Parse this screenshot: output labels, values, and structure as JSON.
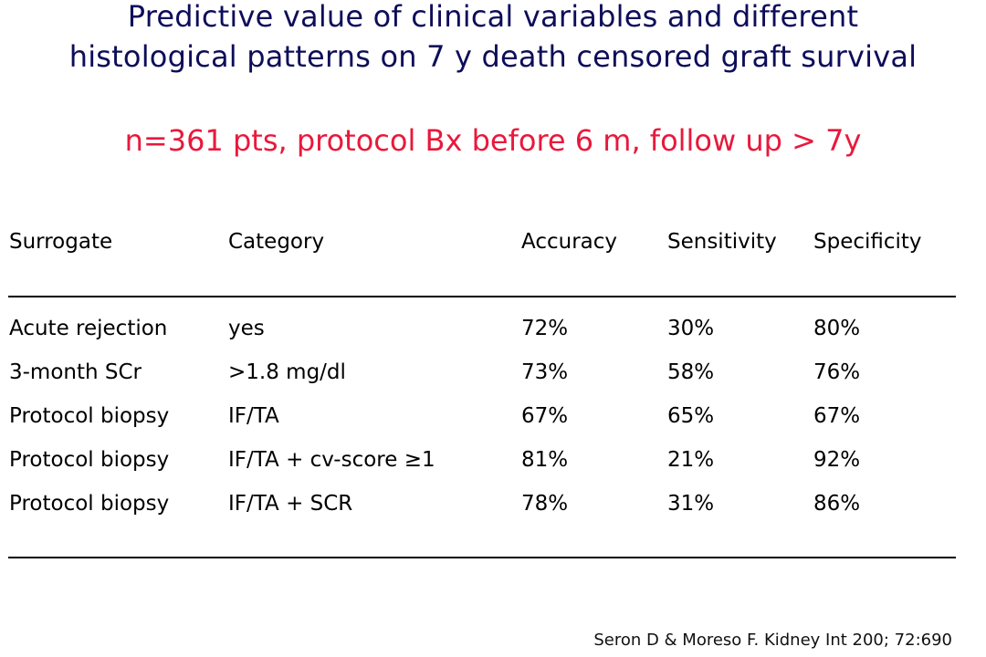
{
  "title": {
    "line1": "Predictive value of clinical variables and different",
    "line2": "histological patterns on 7 y death censored graft survival"
  },
  "subtitle": "n=361 pts, protocol Bx before 6 m, follow up > 7y",
  "table": {
    "headers": [
      "Surrogate",
      "Category",
      "Accuracy",
      "Sensitivity",
      "Specificity"
    ],
    "rows": [
      [
        "Acute rejection",
        "yes",
        "72%",
        "30%",
        "80%"
      ],
      [
        "3-month SCr",
        ">1.8 mg/dl",
        "73%",
        "58%",
        "76%"
      ],
      [
        "Protocol biopsy",
        "IF/TA",
        "67%",
        "65%",
        "67%"
      ],
      [
        "Protocol biopsy",
        "IF/TA + cv-score ≥1",
        "81%",
        "21%",
        "92%"
      ],
      [
        "Protocol biopsy",
        "IF/TA + SCR",
        "78%",
        "31%",
        "86%"
      ]
    ]
  },
  "citation": "Seron D & Moreso F. Kidney Int 200; 72:690",
  "colors": {
    "title": "#0d0d5a",
    "subtitle": "#e8193c",
    "text": "#000000",
    "background": "#ffffff"
  }
}
